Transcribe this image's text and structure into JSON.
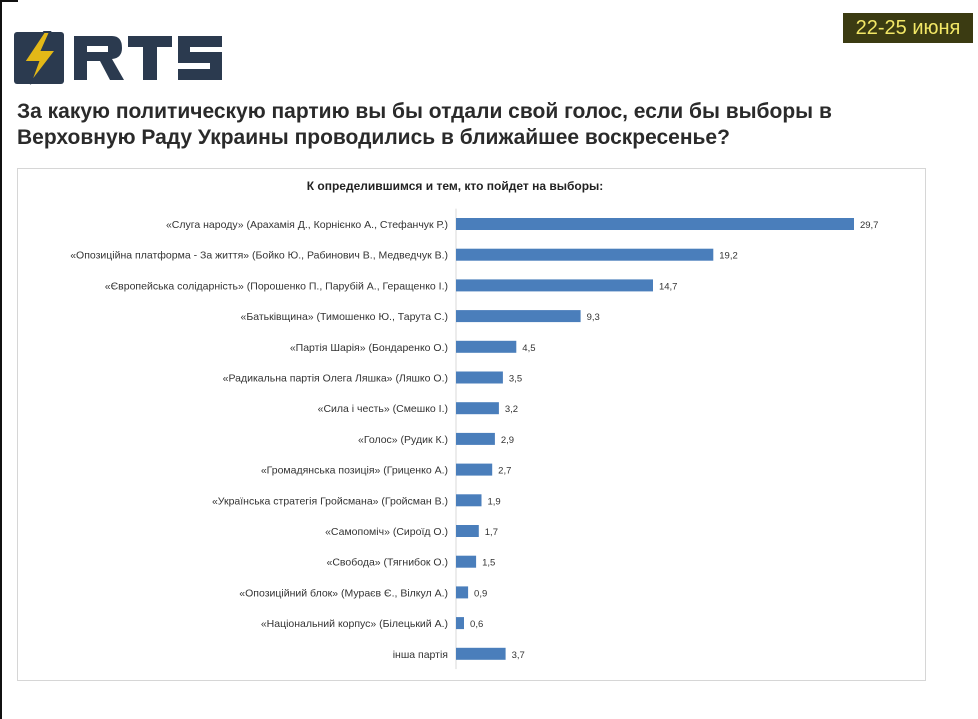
{
  "header": {
    "logo_text": "RTS",
    "date_badge": "22-25 июня",
    "title": "За какую политическую партию вы бы отдали свой голос, если бы выборы в Верховную Раду Украины проводились в ближайшее воскресенье?"
  },
  "colors": {
    "bar": "#4a7ebb",
    "badge_bg": "#3b3b12",
    "badge_text": "#f2e766",
    "logo_bolt": "#e3b817",
    "logo_dark": "#2b3a4f"
  },
  "chart_data": {
    "type": "bar",
    "orientation": "horizontal",
    "title": "К определившимся и тем, кто пойдет на выборы:",
    "categories": [
      "«Слуга народу» (Арахамія Д., Корнієнко А., Стефанчук Р.)",
      "«Опозиційна платформа - За життя» (Бойко Ю., Рабинович В., Медведчук В.)",
      "«Європейська солідарність» (Порошенко П., Парубій А., Геращенко І.)",
      "«Батьківщина» (Тимошенко Ю., Тарута С.)",
      "«Партія Шарія» (Бондаренко О.)",
      "«Радикальна партія Олега Ляшка» (Ляшко О.)",
      "«Сила і честь» (Смешко І.)",
      "«Голос» (Рудик К.)",
      "«Громадянська позиція» (Гриценко А.)",
      "«Українська стратегія Гройсмана» (Гройсман В.)",
      "«Самопоміч» (Сироїд О.)",
      "«Свобода» (Тягнибок О.)",
      "«Опозиційний блок» (Мураєв Є., Вілкул А.)",
      "«Національний корпус» (Білецький А.)",
      "інша партія"
    ],
    "values": [
      29.7,
      19.2,
      14.7,
      9.3,
      4.5,
      3.5,
      3.2,
      2.9,
      2.7,
      1.9,
      1.7,
      1.5,
      0.9,
      0.6,
      3.7
    ],
    "value_labels": [
      "29,7",
      "19,2",
      "14,7",
      "9,3",
      "4,5",
      "3,5",
      "3,2",
      "2,9",
      "2,7",
      "1,9",
      "1,7",
      "1,5",
      "0,9",
      "0,6",
      "3,7"
    ],
    "xlim": [
      0,
      30
    ],
    "grid": false,
    "legend": "none"
  }
}
